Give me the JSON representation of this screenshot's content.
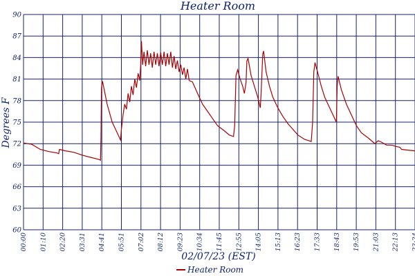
{
  "chart_data": {
    "type": "line",
    "title": "Heater Room",
    "xlabel": "02/07/23 (EST)",
    "ylabel": "Degrees F",
    "ylim": [
      60,
      90
    ],
    "y_ticks": [
      "60",
      "63",
      "66",
      "69",
      "72",
      "75",
      "78",
      "81",
      "84",
      "87",
      "90"
    ],
    "x_ticks": [
      "00:00",
      "01:10",
      "02:20",
      "03:31",
      "04:41",
      "05:51",
      "07:02",
      "08:12",
      "09:23",
      "10:34",
      "11:45",
      "12:55",
      "14:05",
      "15:13",
      "16:23",
      "17:33",
      "18:43",
      "19:53",
      "21:03",
      "22:13",
      "23:24"
    ],
    "grid": true,
    "legend_position": "bottom-center",
    "line_color": "#a80000",
    "grid_color": "#16216e",
    "text_color": "#0b1f6b",
    "series": [
      {
        "name": "Heater Room",
        "x_unit": "hours",
        "points": [
          [
            0.0,
            72.1
          ],
          [
            0.5,
            71.9
          ],
          [
            1.0,
            71.2
          ],
          [
            1.5,
            70.9
          ],
          [
            2.0,
            70.7
          ],
          [
            2.1,
            70.6
          ],
          [
            2.15,
            71.2
          ],
          [
            2.5,
            71.0
          ],
          [
            3.0,
            70.8
          ],
          [
            3.5,
            70.4
          ],
          [
            4.0,
            70.1
          ],
          [
            4.5,
            69.8
          ],
          [
            4.6,
            69.7
          ],
          [
            4.63,
            72.8
          ],
          [
            4.66,
            79.8
          ],
          [
            4.72,
            80.7
          ],
          [
            5.0,
            77.5
          ],
          [
            5.3,
            75.0
          ],
          [
            5.6,
            73.5
          ],
          [
            5.8,
            72.5
          ],
          [
            5.85,
            74.0
          ],
          [
            5.95,
            76.0
          ],
          [
            6.05,
            77.5
          ],
          [
            6.15,
            76.8
          ],
          [
            6.25,
            79.0
          ],
          [
            6.35,
            77.8
          ],
          [
            6.45,
            80.0
          ],
          [
            6.55,
            78.8
          ],
          [
            6.65,
            81.0
          ],
          [
            6.75,
            79.8
          ],
          [
            6.85,
            81.8
          ],
          [
            6.95,
            80.8
          ],
          [
            7.0,
            82.8
          ],
          [
            7.05,
            86.3
          ],
          [
            7.12,
            83.0
          ],
          [
            7.2,
            84.8
          ],
          [
            7.3,
            82.8
          ],
          [
            7.4,
            85.0
          ],
          [
            7.5,
            83.0
          ],
          [
            7.6,
            84.6
          ],
          [
            7.7,
            82.6
          ],
          [
            7.8,
            84.8
          ],
          [
            7.9,
            83.0
          ],
          [
            8.0,
            84.6
          ],
          [
            8.1,
            82.8
          ],
          [
            8.2,
            84.7
          ],
          [
            8.3,
            83.0
          ],
          [
            8.4,
            84.8
          ],
          [
            8.5,
            82.8
          ],
          [
            8.6,
            84.6
          ],
          [
            8.7,
            83.0
          ],
          [
            8.8,
            84.8
          ],
          [
            8.9,
            82.6
          ],
          [
            9.0,
            84.2
          ],
          [
            9.1,
            82.4
          ],
          [
            9.2,
            83.6
          ],
          [
            9.3,
            82.0
          ],
          [
            9.4,
            83.0
          ],
          [
            9.5,
            81.6
          ],
          [
            9.6,
            82.6
          ],
          [
            9.7,
            81.0
          ],
          [
            9.8,
            82.4
          ],
          [
            9.9,
            80.8
          ],
          [
            10.1,
            80.6
          ],
          [
            10.4,
            79.0
          ],
          [
            10.7,
            77.5
          ],
          [
            11.0,
            76.5
          ],
          [
            11.3,
            75.5
          ],
          [
            11.6,
            74.5
          ],
          [
            12.0,
            73.8
          ],
          [
            12.3,
            73.2
          ],
          [
            12.55,
            73.0
          ],
          [
            12.62,
            74.5
          ],
          [
            12.7,
            81.5
          ],
          [
            12.8,
            82.3
          ],
          [
            12.95,
            81.0
          ],
          [
            13.1,
            80.0
          ],
          [
            13.2,
            79.0
          ],
          [
            13.3,
            80.5
          ],
          [
            13.35,
            83.5
          ],
          [
            13.42,
            83.9
          ],
          [
            13.6,
            81.5
          ],
          [
            13.8,
            80.0
          ],
          [
            14.0,
            78.5
          ],
          [
            14.15,
            77.0
          ],
          [
            14.2,
            79.0
          ],
          [
            14.3,
            84.5
          ],
          [
            14.35,
            84.9
          ],
          [
            14.5,
            82.0
          ],
          [
            14.7,
            80.0
          ],
          [
            14.9,
            78.5
          ],
          [
            15.2,
            77.0
          ],
          [
            15.5,
            75.8
          ],
          [
            15.8,
            74.8
          ],
          [
            16.1,
            74.0
          ],
          [
            16.4,
            73.2
          ],
          [
            16.8,
            72.6
          ],
          [
            17.2,
            72.3
          ],
          [
            17.28,
            75.0
          ],
          [
            17.35,
            82.0
          ],
          [
            17.42,
            83.3
          ],
          [
            17.6,
            81.8
          ],
          [
            17.8,
            80.0
          ],
          [
            18.0,
            78.5
          ],
          [
            18.3,
            77.0
          ],
          [
            18.6,
            75.5
          ],
          [
            18.7,
            75.0
          ],
          [
            18.75,
            80.0
          ],
          [
            18.8,
            81.4
          ],
          [
            19.0,
            79.5
          ],
          [
            19.3,
            77.5
          ],
          [
            19.6,
            76.0
          ],
          [
            19.9,
            74.5
          ],
          [
            20.2,
            73.5
          ],
          [
            20.6,
            72.8
          ],
          [
            20.8,
            72.4
          ],
          [
            21.0,
            72.0
          ],
          [
            21.2,
            72.4
          ],
          [
            21.4,
            72.2
          ],
          [
            21.7,
            71.8
          ],
          [
            22.0,
            71.8
          ],
          [
            22.3,
            71.6
          ],
          [
            22.5,
            71.5
          ],
          [
            22.6,
            71.2
          ],
          [
            23.0,
            71.1
          ],
          [
            23.4,
            71.0
          ]
        ]
      }
    ]
  }
}
